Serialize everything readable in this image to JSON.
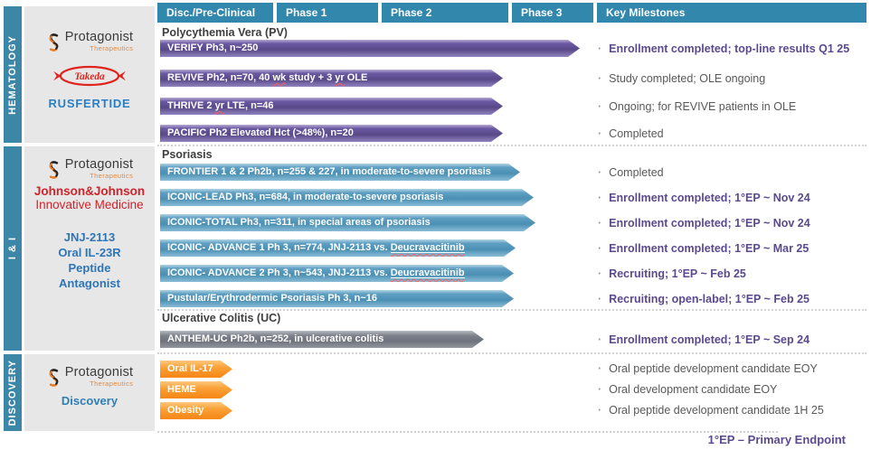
{
  "header": {
    "columns": [
      "Disc./Pre-Clinical",
      "Phase 1",
      "Phase 2",
      "Phase 3",
      "Key Milestones"
    ]
  },
  "brand": {
    "protagonist_name": "Protagonist",
    "protagonist_sub": "Therapeutics",
    "takeda": "Takeda",
    "rusfertide": "RUSFERTIDE",
    "jnj_line1": "Johnson&Johnson",
    "jnj_line2": "Innovative Medicine",
    "program_lines": [
      "JNJ-2113",
      "Oral IL-23R",
      "Peptide",
      "Antagonist"
    ],
    "discovery_label": "Discovery"
  },
  "colors": {
    "header_teal": "#3287ad",
    "bar_purple": "#584888",
    "bar_blue": "#4a8fb4",
    "bar_gray": "#6d727c",
    "bar_orange": "#f68b1c",
    "milestone_purple": "#5b4a8e",
    "milestone_gray": "#595959",
    "jnj_red": "#d2232a",
    "program_blue": "#2e75b6",
    "rusfertide_blue": "#2a7ec6",
    "takeda_red": "#e0241d",
    "protagonist_orange": "#e87a24"
  },
  "sections": {
    "hematology": {
      "rail": "HEMATOLOGY",
      "disease": "Polycythemia Vera (PV)",
      "rows": [
        {
          "bar": "VERIFY Ph3, n~250",
          "milestone": "Enrollment completed; top-line results Q1 25"
        },
        {
          "bar_parts": [
            {
              "t": "REVIVE Ph2, n=70, 40 "
            },
            {
              "t": "wk",
              "style": "spell"
            },
            {
              "t": " study + 3 "
            },
            {
              "t": "yr",
              "style": "spell"
            },
            {
              "t": " OLE"
            }
          ],
          "milestone": "Study completed; OLE ongoing"
        },
        {
          "bar_parts": [
            {
              "t": "THRIVE 2 "
            },
            {
              "t": "yr",
              "style": "spell"
            },
            {
              "t": " LTE, n=46"
            }
          ],
          "milestone": "Ongoing; for REVIVE patients in OLE"
        },
        {
          "bar": "PACIFIC Ph2 Elevated Hct (>48%), n=20",
          "milestone": "Completed"
        }
      ]
    },
    "ii": {
      "rail": "I & I",
      "disease1": "Psoriasis",
      "disease2": "Ulcerative Colitis (UC)",
      "rows": [
        {
          "bar": "FRONTIER 1 & 2 Ph2b, n=255 & 227, in moderate-to-severe psoriasis",
          "milestone": "Completed"
        },
        {
          "bar": "ICONIC-LEAD Ph3, n=684, in moderate-to-severe psoriasis",
          "milestone": "Enrollment completed; 1°EP ~ Nov 24"
        },
        {
          "bar": "ICONIC-TOTAL Ph3, n=311, in special areas of psoriasis",
          "milestone": "Enrollment completed; 1°EP ~ Nov 24"
        },
        {
          "bar_parts": [
            {
              "t": "ICONIC- ADVANCE 1 Ph 3, n=774, JNJ-2113 vs. "
            },
            {
              "t": "Deucravacitinib",
              "style": "dlink"
            }
          ],
          "milestone": "Enrollment completed; 1°EP ~ Mar 25"
        },
        {
          "bar_parts": [
            {
              "t": "ICONIC- ADVANCE 2 Ph 3, n~543, JNJ-2113 vs. "
            },
            {
              "t": "Deucravacitinib",
              "style": "dlink"
            }
          ],
          "milestone": "Recruiting; 1°EP ~ Feb 25"
        },
        {
          "bar": "Pustular/Erythrodermic Psoriasis Ph 3, n~16",
          "milestone": "Recruiting; open-label; 1°EP ~ Feb 25"
        }
      ],
      "uc_row": {
        "bar": "ANTHEM-UC Ph2b, n=252, in ulcerative colitis",
        "milestone": "Enrollment completed; 1°EP ~ Sep 24"
      }
    },
    "discovery": {
      "rail": "DISCOVERY",
      "rows": [
        {
          "bar": "Oral IL-17",
          "milestone": "Oral peptide development candidate EOY"
        },
        {
          "bar": "HEME",
          "milestone": "Oral development candidate EOY"
        },
        {
          "bar": "Obesity",
          "milestone": "Oral peptide development candidate 1H 25"
        }
      ]
    }
  },
  "footer": {
    "note": "1°EP – Primary Endpoint"
  }
}
